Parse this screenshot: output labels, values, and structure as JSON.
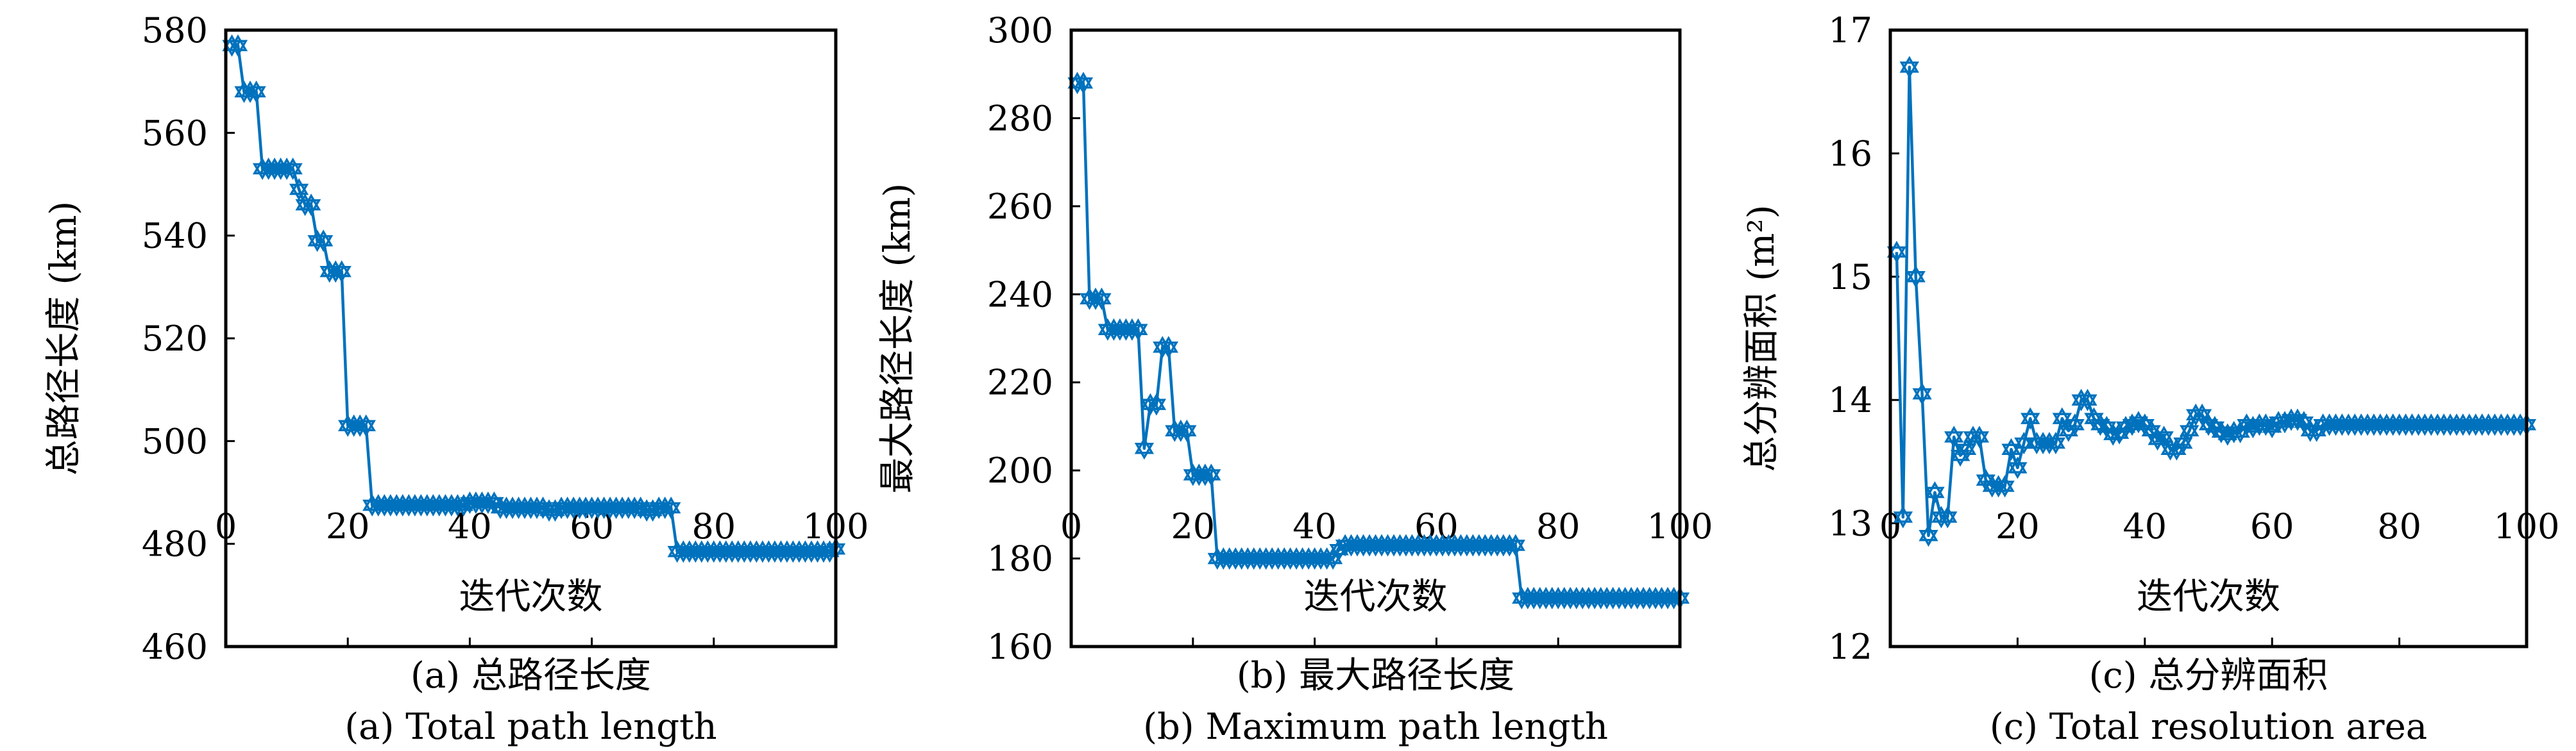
{
  "series_color": "#0072BD",
  "chart_data": [
    {
      "type": "line",
      "marker": "hexagram",
      "xlabel": "迭代次数",
      "ylabel": "总路径长度 (km)",
      "caption_cn": "(a) 总路径长度",
      "caption_en": "(a) Total path length",
      "xlim": [
        0,
        100
      ],
      "ylim": [
        460,
        580
      ],
      "xticks": [
        0,
        20,
        40,
        60,
        80,
        100
      ],
      "yticks": [
        460,
        480,
        500,
        520,
        540,
        560,
        580
      ],
      "grid": false,
      "x_start": 1,
      "values": [
        577,
        577,
        568,
        568,
        568,
        553,
        553,
        553,
        553,
        553,
        553,
        549,
        546,
        546,
        539,
        539,
        533,
        533,
        533,
        503,
        503,
        503,
        503,
        487.5,
        487.5,
        487.5,
        487.5,
        487.5,
        487.5,
        487.5,
        487.5,
        487.5,
        487.5,
        487.5,
        487.5,
        487.5,
        487.5,
        487.5,
        487.5,
        488,
        488,
        488,
        488,
        488,
        487,
        487,
        487,
        487,
        487,
        487,
        487,
        487,
        486.5,
        486.5,
        487,
        487,
        487,
        487,
        487,
        487,
        487,
        487,
        487,
        487,
        487,
        487,
        487,
        487,
        486.5,
        486.5,
        487,
        487,
        487,
        478.5,
        478.5,
        478.5,
        478.5,
        478.5,
        478.5,
        478.5,
        478.5,
        478.5,
        478.5,
        478.5,
        478.5,
        478.5,
        478.5,
        478.5,
        478.5,
        478.5,
        478.5,
        478.5,
        478.5,
        478.5,
        478.5,
        478.5,
        478.5,
        478.5,
        478.5,
        479
      ]
    },
    {
      "type": "line",
      "marker": "hexagram",
      "xlabel": "迭代次数",
      "ylabel": "最大路径长度 (km)",
      "caption_cn": "(b) 最大路径长度",
      "caption_en": "(b) Maximum path length",
      "xlim": [
        0,
        100
      ],
      "ylim": [
        160,
        300
      ],
      "xticks": [
        0,
        20,
        40,
        60,
        80,
        100
      ],
      "yticks": [
        160,
        180,
        200,
        220,
        240,
        260,
        280,
        300
      ],
      "grid": false,
      "x_start": 1,
      "values": [
        288,
        288,
        239,
        239,
        239,
        232,
        232,
        232,
        232,
        232,
        232,
        205,
        215,
        215,
        228,
        228,
        209,
        209,
        209,
        199,
        199,
        199,
        199,
        180,
        180,
        180,
        180,
        180,
        180,
        180,
        180,
        180,
        180,
        180,
        180,
        180,
        180,
        180,
        180,
        180,
        180,
        180,
        180,
        182,
        183,
        183,
        183,
        183,
        183,
        183,
        183,
        183,
        183,
        183,
        183,
        183,
        183,
        183,
        183,
        183,
        183,
        183,
        183,
        183,
        183,
        183,
        183,
        183,
        183,
        183,
        183,
        183,
        183,
        171,
        171,
        171,
        171,
        171,
        171,
        171,
        171,
        171,
        171,
        171,
        171,
        171,
        171,
        171,
        171,
        171,
        171,
        171,
        171,
        171,
        171,
        171,
        171,
        171,
        171,
        171
      ]
    },
    {
      "type": "line",
      "marker": "hexagram",
      "xlabel": "迭代次数",
      "ylabel": "总分辨面积 (m²)",
      "caption_cn": "(c) 总分辨面积",
      "caption_en": "(c) Total resolution area",
      "xlim": [
        0,
        100
      ],
      "ylim": [
        12,
        17
      ],
      "xticks": [
        0,
        20,
        40,
        60,
        80,
        100
      ],
      "yticks": [
        12,
        13,
        14,
        15,
        16,
        17
      ],
      "grid": false,
      "x_start": 1,
      "values": [
        15.2,
        13.05,
        16.7,
        15.0,
        14.05,
        12.9,
        13.25,
        13.05,
        13.05,
        13.7,
        13.55,
        13.6,
        13.7,
        13.7,
        13.35,
        13.3,
        13.3,
        13.3,
        13.6,
        13.45,
        13.65,
        13.85,
        13.65,
        13.65,
        13.65,
        13.65,
        13.85,
        13.75,
        13.8,
        14.0,
        14.0,
        13.85,
        13.8,
        13.78,
        13.72,
        13.73,
        13.78,
        13.8,
        13.82,
        13.8,
        13.75,
        13.68,
        13.7,
        13.6,
        13.6,
        13.65,
        13.75,
        13.88,
        13.88,
        13.8,
        13.78,
        13.74,
        13.72,
        13.74,
        13.74,
        13.8,
        13.78,
        13.8,
        13.8,
        13.78,
        13.82,
        13.82,
        13.84,
        13.84,
        13.82,
        13.75,
        13.75,
        13.8,
        13.8,
        13.8,
        13.8,
        13.8,
        13.8,
        13.8,
        13.8,
        13.8,
        13.8,
        13.8,
        13.8,
        13.8,
        13.8,
        13.8,
        13.8,
        13.8,
        13.8,
        13.8,
        13.8,
        13.8,
        13.8,
        13.8,
        13.8,
        13.8,
        13.8,
        13.8,
        13.8,
        13.8,
        13.8,
        13.8,
        13.8,
        13.8
      ]
    }
  ]
}
